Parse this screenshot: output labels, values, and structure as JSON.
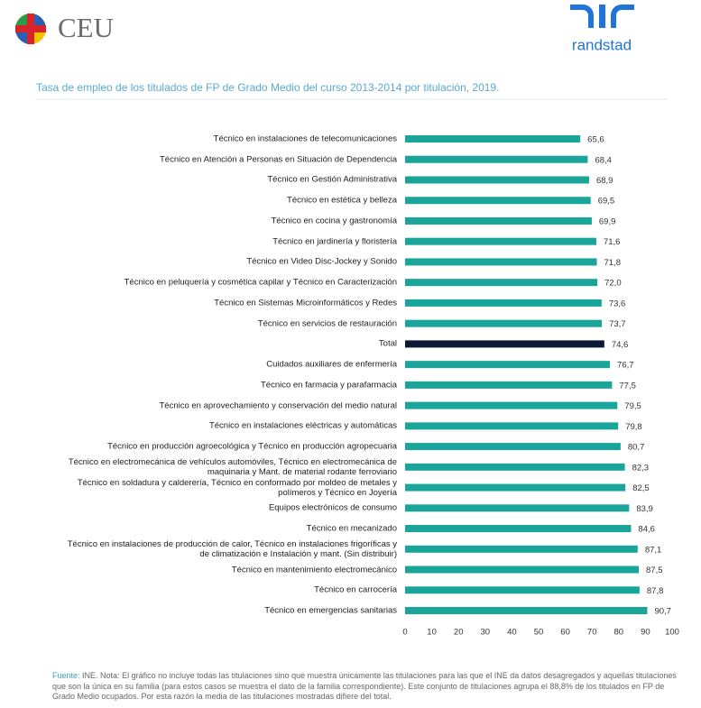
{
  "logos": [
    "CEU",
    "randstad"
  ],
  "chart_data": {
    "type": "hbar",
    "title": "Tasa de empleo de los titulados de FP de Grado Medio del curso 2013-2014 por titulación, 2019.",
    "categories": [
      "Técnico en instalaciones de telecomunicaciones",
      "Técnico en Atención a Personas en Situación de Dependencia",
      "Técnico en Gestión Administrativa",
      "Técnico en estética y belleza",
      "Técnico en cocina y gastronomía",
      "Técnico en jardinería y floristería",
      "Técnico en Video Disc-Jockey y Sonido",
      "Técnico en peluquería y cosmética capilar y Técnico en Caracterización",
      "Técnico en Sistemas Microinformáticos y Redes",
      "Técnico en servicios de restauración",
      "Total",
      "Cuidados auxiliares de enfermería",
      "Técnico en farmacia y parafarmacia",
      "Técnico en aprovechamiento y conservación del medio natural",
      "Técnico en instalaciones eléctricas y automáticas",
      "Técnico en producción agroecológica y Técnico en producción agropecuaria",
      "Técnico en electromecánica de vehículos automóviles, Técnico en electromecánica de\nmaquinaria y Mant. de material rodante ferroviario",
      "Técnico en soldadura y calderería, Técnico en conformado por moldeo de metales y\npolímeros y Técnico en Joyería",
      "Equipos electrónicos de consumo",
      "Técnico en mecanizado",
      "Técnico en instalaciones de producción de calor, Técnico en instalaciones frigoríficas y\nde climatización e Instalación y mant. (Sin distribuir)",
      "Técnico en mantenimiento electromecánico",
      "Técnico en carrocería",
      "Técnico en emergencias sanitarias"
    ],
    "values": [
      65.6,
      68.4,
      68.9,
      69.5,
      69.9,
      71.6,
      71.8,
      72.0,
      73.6,
      73.7,
      74.6,
      76.7,
      77.5,
      79.5,
      79.8,
      80.7,
      82.3,
      82.5,
      83.9,
      84.6,
      87.1,
      87.5,
      87.8,
      90.7
    ],
    "value_labels": [
      "65,6",
      "68,4",
      "68,9",
      "69,5",
      "69,9",
      "71,6",
      "71,8",
      "72,0",
      "73,6",
      "73,7",
      "74,6",
      "76,7",
      "77,5",
      "79,5",
      "79,8",
      "80,7",
      "82,3",
      "82,5",
      "83,9",
      "84,6",
      "87,1",
      "87,5",
      "87,8",
      "90,7"
    ],
    "colors": [
      "#1aa59b",
      "#1aa59b",
      "#1aa59b",
      "#1aa59b",
      "#1aa59b",
      "#1aa59b",
      "#1aa59b",
      "#1aa59b",
      "#1aa59b",
      "#1aa59b",
      "#0c1838",
      "#1aa59b",
      "#1aa59b",
      "#1aa59b",
      "#1aa59b",
      "#1aa59b",
      "#1aa59b",
      "#1aa59b",
      "#1aa59b",
      "#1aa59b",
      "#1aa59b",
      "#1aa59b",
      "#1aa59b",
      "#1aa59b"
    ],
    "xlim": [
      0,
      100
    ],
    "xticks": [
      0,
      10,
      20,
      30,
      40,
      50,
      60,
      70,
      80,
      90,
      100
    ],
    "grid": false,
    "source_label": "Fuente:",
    "note": "INE. Nota: El gráfico no incluye todas las titulaciones sino que muestra únicamente las titulaciones para las que el INE da datos desagregados y aquellas titulaciones que son la única en su familia (para estos casos se muestra el dato de la familia correspondiente). Este conjunto de titulaciones agrupa el 88,8% de los titulados en FP de Grado Medio ocupados. Por esta razón la media de las titulaciones mostradas difiere del total."
  }
}
